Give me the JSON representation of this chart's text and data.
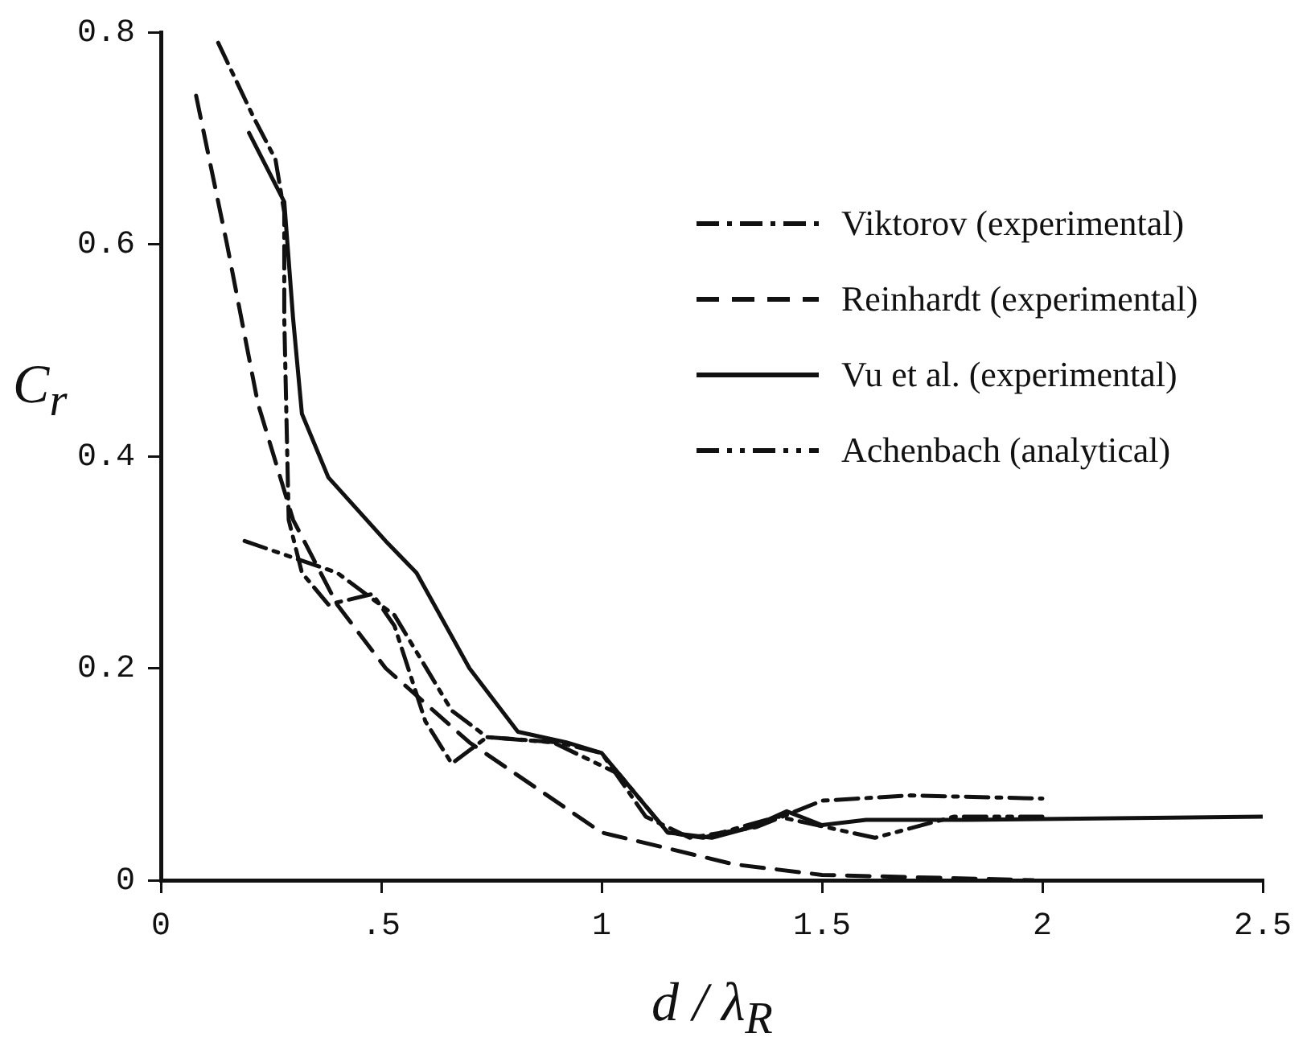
{
  "chart_data": {
    "type": "line",
    "xlabel": "d / λ$_{R}$",
    "ylabel": "C$_{r}$",
    "xlim": [
      0,
      2.5
    ],
    "ylim": [
      0,
      0.8
    ],
    "xticks": [
      0,
      {
        "value": 0.5,
        "label": ".5"
      },
      1,
      1.5,
      2,
      2.5
    ],
    "yticks": [
      0,
      0.2,
      0.4,
      0.6,
      0.8
    ],
    "grid": false,
    "legend": "top right",
    "marker": "none",
    "series": [
      {
        "name": "Viktorov (experimental)",
        "color": "#111111",
        "line_style": "dashdot",
        "x": [
          0.13,
          0.21,
          0.26,
          0.28,
          0.28,
          0.29,
          0.32,
          0.38,
          0.48,
          0.53,
          0.6,
          0.66,
          0.74,
          0.9,
          1.0,
          1.1,
          1.2,
          1.35,
          1.5,
          1.7,
          2.0
        ],
        "values": [
          0.79,
          0.72,
          0.68,
          0.63,
          0.53,
          0.34,
          0.29,
          0.26,
          0.27,
          0.24,
          0.15,
          0.11,
          0.135,
          0.13,
          0.12,
          0.06,
          0.04,
          0.05,
          0.075,
          0.08,
          0.077
        ]
      },
      {
        "name": "Reinhardt (experimental)",
        "color": "#111111",
        "line_style": "dashed",
        "x": [
          0.08,
          0.15,
          0.22,
          0.3,
          0.4,
          0.51,
          0.7,
          1.0,
          1.3,
          1.5,
          1.98
        ],
        "values": [
          0.74,
          0.6,
          0.45,
          0.34,
          0.26,
          0.2,
          0.13,
          0.045,
          0.015,
          0.005,
          0.0
        ]
      },
      {
        "name": "Vu et al. (experimental)",
        "color": "#111111",
        "line_style": "solid",
        "x": [
          0.2,
          0.28,
          0.3,
          0.32,
          0.38,
          0.51,
          0.58,
          0.7,
          0.81,
          0.92,
          1.0,
          1.08,
          1.15,
          1.25,
          1.34,
          1.42,
          1.5,
          1.6,
          1.83,
          2.5
        ],
        "values": [
          0.705,
          0.64,
          0.53,
          0.44,
          0.38,
          0.32,
          0.29,
          0.2,
          0.14,
          0.13,
          0.12,
          0.08,
          0.045,
          0.04,
          0.05,
          0.065,
          0.052,
          0.057,
          0.057,
          0.06
        ]
      },
      {
        "name": "Achenbach (analytical)",
        "color": "#111111",
        "line_style": "dashdotdot",
        "x": [
          0.19,
          0.4,
          0.53,
          0.66,
          0.74,
          0.89,
          1.04,
          1.15,
          1.23,
          1.4,
          1.62,
          1.8,
          2.0
        ],
        "values": [
          0.32,
          0.29,
          0.25,
          0.16,
          0.135,
          0.13,
          0.1,
          0.045,
          0.04,
          0.06,
          0.04,
          0.06,
          0.06
        ]
      }
    ]
  }
}
